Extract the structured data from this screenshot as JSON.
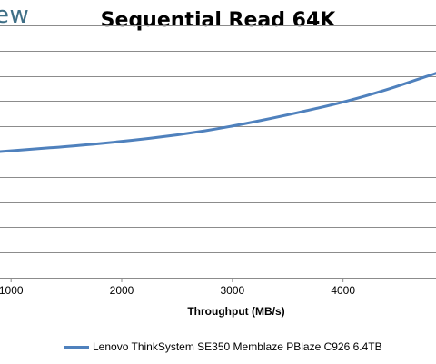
{
  "brand": {
    "text": "ew"
  },
  "chart_data": {
    "type": "line",
    "title": "Sequential Read 64K",
    "xlabel": "Throughput (MB/s)",
    "ylabel": "",
    "x_ticks": [
      1000,
      2000,
      3000,
      4000
    ],
    "xlim": [
      900,
      4840
    ],
    "ylim": [
      0,
      10
    ],
    "y_gridlines": [
      1,
      2,
      3,
      4,
      5,
      6,
      7,
      8,
      9,
      10
    ],
    "grid": true,
    "legend_position": "bottom",
    "series": [
      {
        "name": "Lenovo ThinkSystem SE350 Memblaze PBlaze C926 6.4TB",
        "color": "#4f81bd",
        "x": [
          900,
          1200,
          1500,
          2000,
          2500,
          3000,
          3500,
          4000,
          4400,
          4700,
          4840
        ],
        "y": [
          5.0,
          5.1,
          5.2,
          5.4,
          5.65,
          6.0,
          6.45,
          6.95,
          7.45,
          7.9,
          8.1
        ]
      }
    ]
  }
}
